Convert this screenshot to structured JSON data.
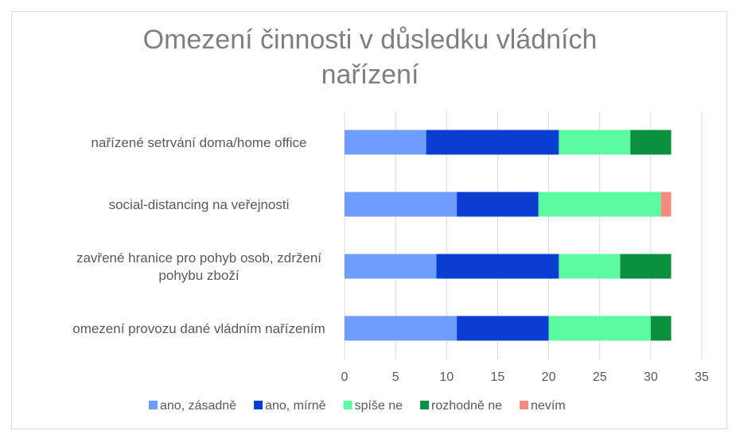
{
  "chart_data": {
    "type": "bar",
    "orientation": "horizontal",
    "stacked": true,
    "title_lines": [
      "Omezení činnosti v důsledku vládních",
      "nařízení"
    ],
    "categories": [
      [
        "nařízené setrvání doma/home office"
      ],
      [
        "social-distancing na veřejnosti"
      ],
      [
        "zavřené hranice pro pohyb osob, zdržení",
        "pohybu zboží"
      ],
      [
        "omezení provozu dané vládním nařízením"
      ]
    ],
    "series": [
      {
        "name": "ano, zásadně",
        "color": "#6f9cff",
        "values": [
          8,
          11,
          9,
          11
        ]
      },
      {
        "name": "ano, mírně",
        "color": "#0a3ed0",
        "values": [
          13,
          8,
          12,
          9
        ]
      },
      {
        "name": "spíše ne",
        "color": "#5cfaa0",
        "values": [
          7,
          12,
          6,
          10
        ]
      },
      {
        "name": "rozhodně ne",
        "color": "#0b9040",
        "values": [
          4,
          0,
          5,
          2
        ]
      },
      {
        "name": "nevím",
        "color": "#f78a7e",
        "values": [
          0,
          1,
          0,
          0
        ]
      }
    ],
    "xlim": [
      0,
      35
    ],
    "xticks": [
      0,
      5,
      10,
      15,
      20,
      25,
      30,
      35
    ],
    "grid": true,
    "legend_position": "bottom"
  }
}
